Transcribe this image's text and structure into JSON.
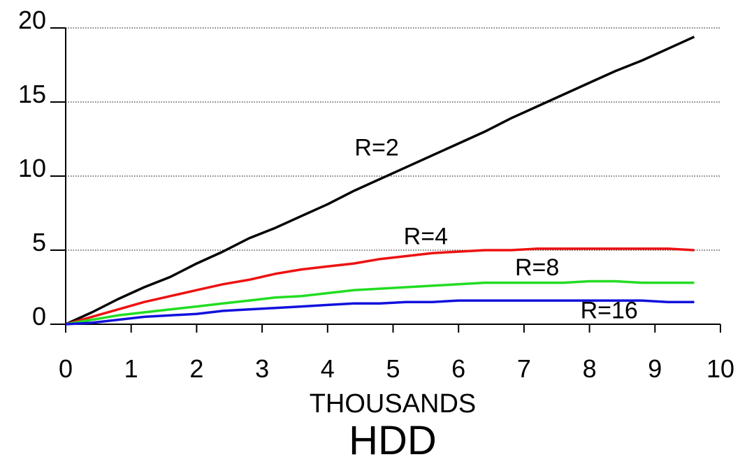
{
  "chart_data": {
    "type": "line",
    "title": "",
    "xlabel": "THOUSANDS",
    "caption": "HDD",
    "ylabel": "",
    "xlim": [
      0,
      10
    ],
    "ylim": [
      0,
      20
    ],
    "x_ticks": [
      "0",
      "1",
      "2",
      "3",
      "4",
      "5",
      "6",
      "7",
      "8",
      "9",
      "10"
    ],
    "y_ticks": [
      "0",
      "5",
      "10",
      "15",
      "20"
    ],
    "grid": "horizontal dotted at major y ticks",
    "series": [
      {
        "name": "R=2",
        "color": "#000000",
        "x": [
          0,
          0.4,
          0.8,
          1.2,
          1.6,
          2.0,
          2.4,
          2.8,
          3.2,
          3.6,
          4.0,
          4.4,
          4.8,
          5.2,
          5.6,
          6.0,
          6.4,
          6.8,
          7.2,
          7.6,
          8.0,
          8.4,
          8.8,
          9.2,
          9.6
        ],
        "values": [
          0,
          0.8,
          1.7,
          2.5,
          3.2,
          4.1,
          4.9,
          5.8,
          6.5,
          7.3,
          8.1,
          9.0,
          9.8,
          10.6,
          11.4,
          12.2,
          13.0,
          13.9,
          14.7,
          15.5,
          16.3,
          17.1,
          17.8,
          18.6,
          19.4
        ]
      },
      {
        "name": "R=4",
        "color": "#ee1111",
        "x": [
          0,
          0.4,
          0.8,
          1.2,
          1.6,
          2.0,
          2.4,
          2.8,
          3.2,
          3.6,
          4.0,
          4.4,
          4.8,
          5.2,
          5.6,
          6.0,
          6.4,
          6.8,
          7.2,
          7.6,
          8.0,
          8.4,
          8.8,
          9.2,
          9.6
        ],
        "values": [
          0,
          0.5,
          1.0,
          1.5,
          1.9,
          2.3,
          2.7,
          3.0,
          3.4,
          3.7,
          3.9,
          4.1,
          4.4,
          4.6,
          4.8,
          4.9,
          5.0,
          5.0,
          5.1,
          5.1,
          5.1,
          5.1,
          5.1,
          5.1,
          5.0
        ]
      },
      {
        "name": "R=8",
        "color": "#22dd22",
        "x": [
          0,
          0.4,
          0.8,
          1.2,
          1.6,
          2.0,
          2.4,
          2.8,
          3.2,
          3.6,
          4.0,
          4.4,
          4.8,
          5.2,
          5.6,
          6.0,
          6.4,
          6.8,
          7.2,
          7.6,
          8.0,
          8.4,
          8.8,
          9.2,
          9.6
        ],
        "values": [
          0,
          0.3,
          0.6,
          0.8,
          1.0,
          1.2,
          1.4,
          1.6,
          1.8,
          1.9,
          2.1,
          2.3,
          2.4,
          2.5,
          2.6,
          2.7,
          2.8,
          2.8,
          2.8,
          2.8,
          2.9,
          2.9,
          2.8,
          2.8,
          2.8
        ]
      },
      {
        "name": "R=16",
        "color": "#1111dd",
        "x": [
          0,
          0.4,
          0.8,
          1.2,
          1.6,
          2.0,
          2.4,
          2.8,
          3.2,
          3.6,
          4.0,
          4.4,
          4.8,
          5.2,
          5.6,
          6.0,
          6.4,
          6.8,
          7.2,
          7.6,
          8.0,
          8.4,
          8.8,
          9.2,
          9.6
        ],
        "values": [
          0,
          0.1,
          0.3,
          0.5,
          0.6,
          0.7,
          0.9,
          1.0,
          1.1,
          1.2,
          1.3,
          1.4,
          1.4,
          1.5,
          1.5,
          1.6,
          1.6,
          1.6,
          1.6,
          1.6,
          1.6,
          1.6,
          1.6,
          1.5,
          1.5
        ]
      }
    ],
    "annotations": [
      {
        "text": "R=2",
        "x": 4.75,
        "y": 11.4,
        "color": "#000000"
      },
      {
        "text": "R=4",
        "x": 5.5,
        "y": 5.4,
        "color": "#000000"
      },
      {
        "text": "R=8",
        "x": 7.2,
        "y": 3.3,
        "color": "#000000"
      },
      {
        "text": "R=16",
        "x": 8.3,
        "y": 0.4,
        "color": "#000000"
      }
    ]
  }
}
